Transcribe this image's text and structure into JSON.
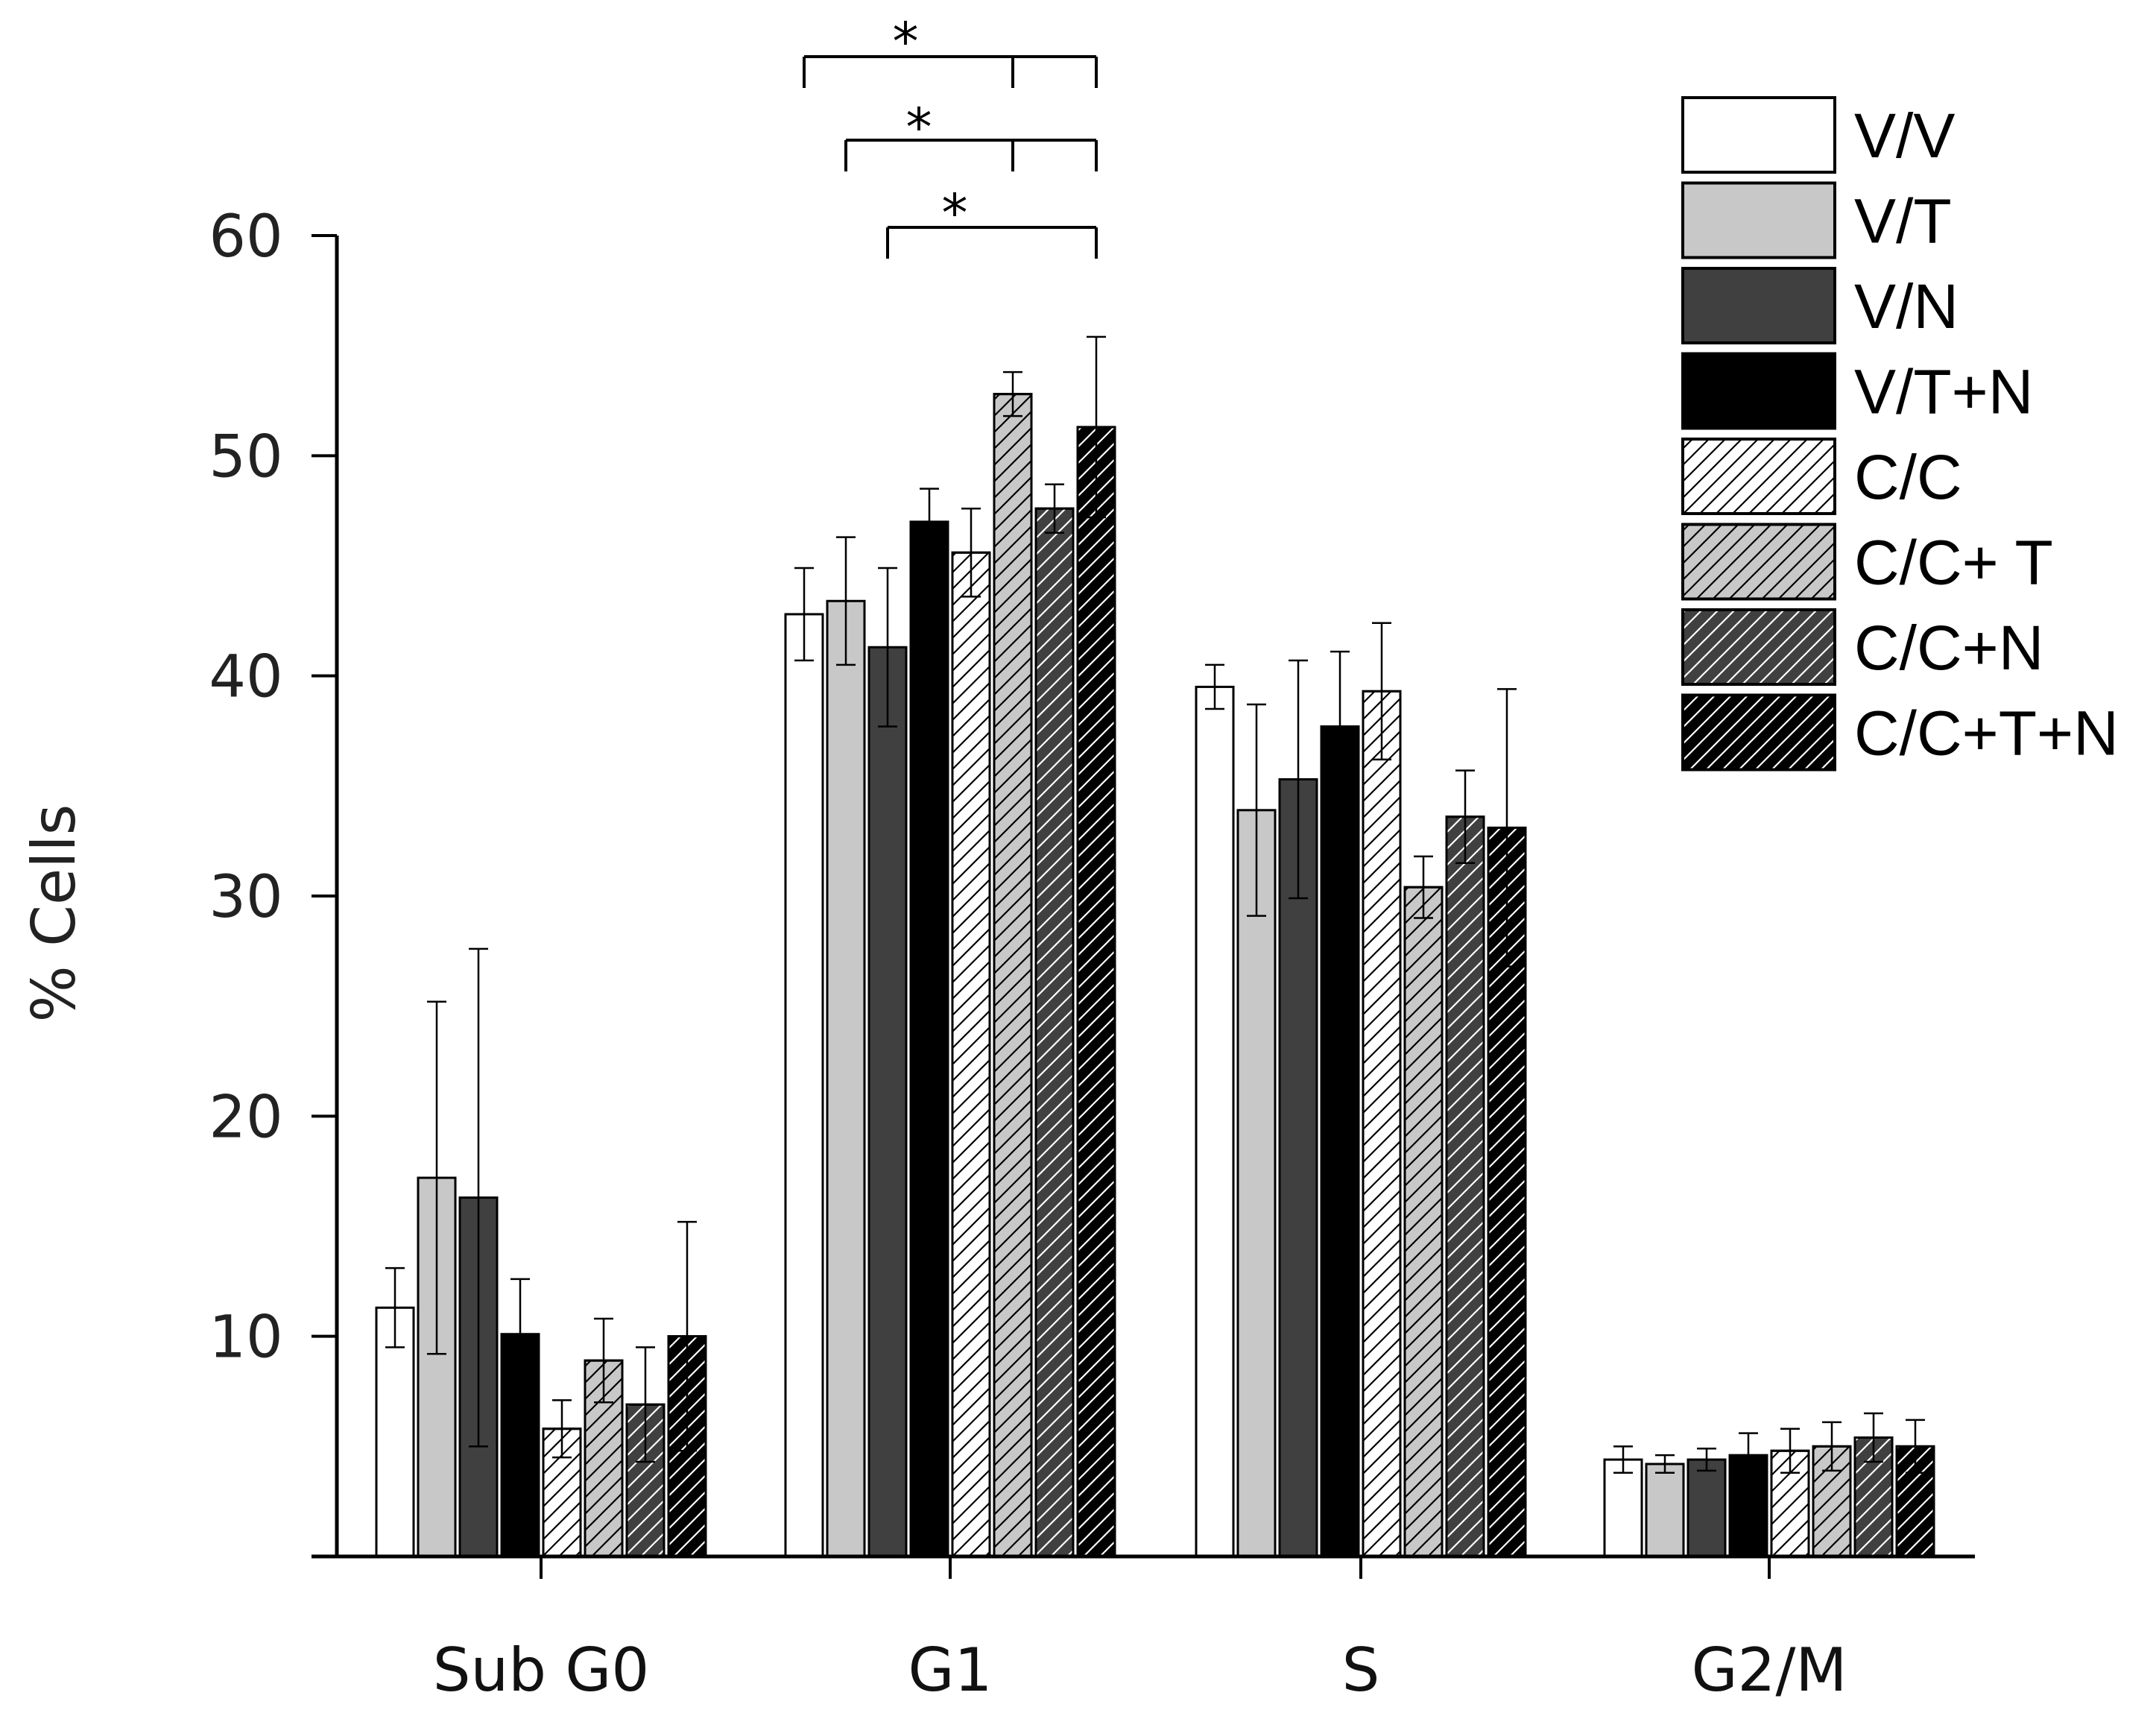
{
  "chart_data": {
    "type": "bar",
    "title": "",
    "xlabel": "",
    "ylabel": "% Cells",
    "ylim": [
      0,
      60
    ],
    "yticks": [
      10,
      20,
      30,
      40,
      50,
      60
    ],
    "categories": [
      "Sub G0",
      "G1",
      "S",
      "G2/M"
    ],
    "legend_position": "top-right",
    "series": [
      {
        "name": "V/V",
        "fill": "#ffffff",
        "hatch": false,
        "values": [
          11.3,
          42.8,
          39.5,
          4.4
        ],
        "errors": [
          1.8,
          2.1,
          1.0,
          0.6
        ]
      },
      {
        "name": "V/T",
        "fill": "#c8c8c8",
        "hatch": false,
        "values": [
          17.2,
          43.4,
          33.9,
          4.2
        ],
        "errors": [
          8.0,
          2.9,
          4.8,
          0.4
        ]
      },
      {
        "name": "V/N",
        "fill": "#404040",
        "hatch": false,
        "values": [
          16.3,
          41.3,
          35.3,
          4.4
        ],
        "errors": [
          11.3,
          3.6,
          5.4,
          0.5
        ]
      },
      {
        "name": "V/T+N",
        "fill": "#000000",
        "hatch": false,
        "values": [
          10.1,
          47.0,
          37.7,
          4.6
        ],
        "errors": [
          2.5,
          1.5,
          3.4,
          1.0
        ]
      },
      {
        "name": "C/C",
        "fill": "#ffffff",
        "hatch": true,
        "values": [
          5.8,
          45.6,
          39.3,
          4.8
        ],
        "errors": [
          1.3,
          2.0,
          3.1,
          1.0
        ]
      },
      {
        "name": "C/C+ T",
        "fill": "#c8c8c8",
        "hatch": true,
        "values": [
          8.9,
          52.8,
          30.4,
          5.0
        ],
        "errors": [
          1.9,
          1.0,
          1.4,
          1.1
        ]
      },
      {
        "name": "C/C+N",
        "fill": "#404040",
        "hatch": true,
        "values": [
          6.9,
          47.6,
          33.6,
          5.4
        ],
        "errors": [
          2.6,
          1.1,
          2.1,
          1.1
        ]
      },
      {
        "name": "C/C+T+N",
        "fill": "#000000",
        "hatch": true,
        "values": [
          10.0,
          51.3,
          33.1,
          5.0
        ],
        "errors": [
          5.2,
          4.1,
          6.3,
          1.2
        ]
      }
    ],
    "annotations": [
      {
        "label": "*",
        "category": "G1",
        "from_series": 0,
        "to_series": 7,
        "mid_series": 5
      },
      {
        "label": "*",
        "category": "G1",
        "from_series": 1,
        "to_series": 7,
        "mid_series": 5
      },
      {
        "label": "*",
        "category": "G1",
        "from_series": 2,
        "to_series": 7
      }
    ]
  }
}
